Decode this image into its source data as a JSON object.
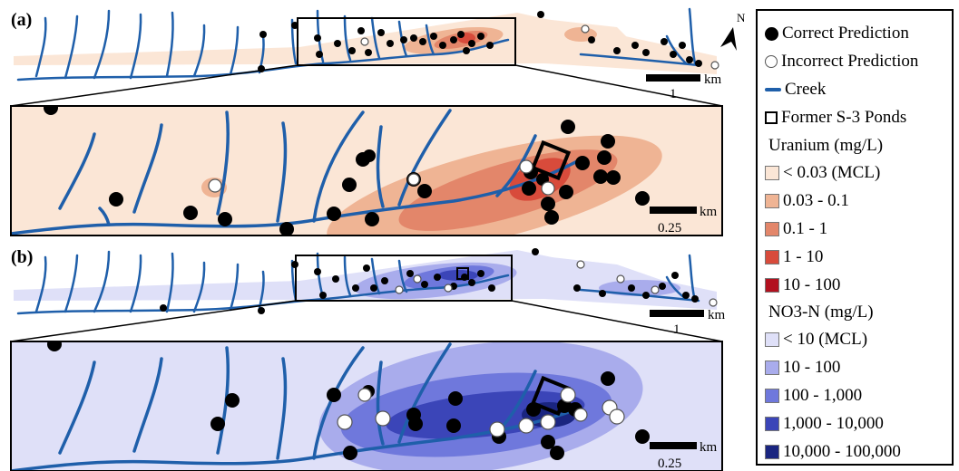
{
  "panels": [
    {
      "label": "(a)",
      "scalebar": "1",
      "scalebar_unit": "km"
    },
    {
      "label": "(b)",
      "scalebar": "1",
      "scalebar_unit": "km"
    }
  ],
  "insets": [
    {
      "scalebar": "0.25",
      "scalebar_unit": "km"
    },
    {
      "scalebar": "0.25",
      "scalebar_unit": "km"
    }
  ],
  "north_label": "N",
  "legend": {
    "symbols": [
      {
        "label": "Correct Prediction",
        "icon": "black-dot-icon"
      },
      {
        "label": "Incorrect Prediction",
        "icon": "white-dot-icon"
      },
      {
        "label": "Creek",
        "icon": "blue-line-icon",
        "color": "#1f5faa"
      },
      {
        "label": "Former S-3 Ponds",
        "icon": "square-outline-icon"
      }
    ],
    "uranium": {
      "title": "Uranium (mg/L)",
      "classes": [
        {
          "label": "< 0.03 (MCL)",
          "color": "#fbe6d6"
        },
        {
          "label": "0.03 - 0.1",
          "color": "#efb494"
        },
        {
          "label": "0.1 - 1",
          "color": "#e3866a"
        },
        {
          "label": "1 - 10",
          "color": "#d84b3b"
        },
        {
          "label": "10 - 100",
          "color": "#b2101e"
        }
      ]
    },
    "nitrate": {
      "title": "NO3-N (mg/L)",
      "classes": [
        {
          "label": "< 10 (MCL)",
          "color": "#dfe0f8"
        },
        {
          "label": "10 - 100",
          "color": "#a9acec"
        },
        {
          "label": "100 - 1,000",
          "color": "#6f78dc"
        },
        {
          "label": "1,000 - 10,000",
          "color": "#3b45b8"
        },
        {
          "label": "10,000 - 100,000",
          "color": "#1a2580"
        }
      ]
    }
  }
}
